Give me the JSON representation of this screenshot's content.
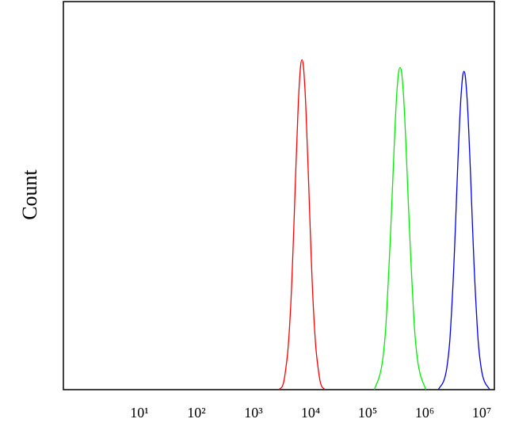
{
  "chart_data": {
    "type": "line",
    "y_label": "Count",
    "x_scale": "log",
    "xlim": [
      0.464,
      16700000
    ],
    "ylim": [
      0,
      100
    ],
    "xticks": [
      {
        "value": 10,
        "label": "10¹"
      },
      {
        "value": 100,
        "label": "10²"
      },
      {
        "value": 1000,
        "label": "10³"
      },
      {
        "value": 10000,
        "label": "10⁴"
      },
      {
        "value": 100000,
        "label": "10⁵"
      },
      {
        "value": 1000000,
        "label": "10⁶"
      },
      {
        "value": 10000000,
        "label": "10⁷"
      }
    ],
    "series": [
      {
        "color": "#ff0000",
        "x": [
          2818,
          3548,
          4467,
          5623,
          6310,
          7079,
          7943,
          8913,
          11220,
          14125,
          17783
        ],
        "values": [
          0,
          3.7,
          21,
          60,
          78,
          85,
          78,
          60,
          21,
          3.7,
          0
        ]
      },
      {
        "color": "#00ee00",
        "x": [
          131826,
          186209,
          234423,
          295121,
          331131,
          371535,
          416869,
          467735,
          588844,
          741310,
          1047129
        ],
        "values": [
          0,
          8.3,
          30,
          64,
          78,
          83,
          78,
          64,
          30,
          8.3,
          0
        ]
      },
      {
        "color": "#0000ee",
        "x": [
          1737801,
          2454709,
          3090295,
          3890451,
          4365158,
          4897788,
          5495409,
          6165950,
          7762471,
          9772372,
          13803843
        ],
        "values": [
          0,
          5.7,
          25,
          61,
          76,
          82,
          76,
          61,
          25,
          5.7,
          0
        ]
      }
    ]
  }
}
